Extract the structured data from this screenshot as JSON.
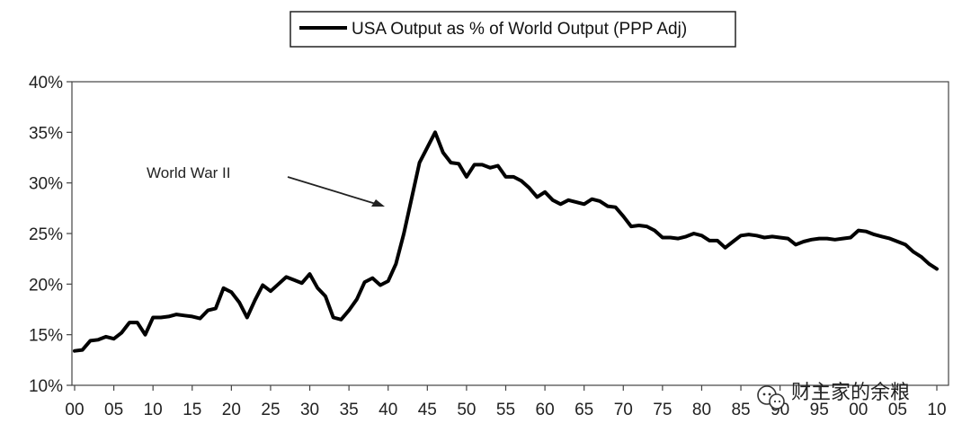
{
  "chart_data": {
    "type": "line",
    "title": "",
    "xlabel": "",
    "ylabel": "",
    "ylim": [
      10,
      40
    ],
    "xlim": [
      1900,
      2011
    ],
    "grid": false,
    "legend_placement": "top-center",
    "yticks": [
      {
        "value": 10,
        "label": "10%"
      },
      {
        "value": 15,
        "label": "15%"
      },
      {
        "value": 20,
        "label": "20%"
      },
      {
        "value": 25,
        "label": "25%"
      },
      {
        "value": 30,
        "label": "30%"
      },
      {
        "value": 35,
        "label": "35%"
      },
      {
        "value": 40,
        "label": "40%"
      }
    ],
    "xticks": [
      {
        "value": 1900,
        "label": "00"
      },
      {
        "value": 1905,
        "label": "05"
      },
      {
        "value": 1910,
        "label": "10"
      },
      {
        "value": 1915,
        "label": "15"
      },
      {
        "value": 1920,
        "label": "20"
      },
      {
        "value": 1925,
        "label": "25"
      },
      {
        "value": 1930,
        "label": "30"
      },
      {
        "value": 1935,
        "label": "35"
      },
      {
        "value": 1940,
        "label": "40"
      },
      {
        "value": 1945,
        "label": "45"
      },
      {
        "value": 1950,
        "label": "50"
      },
      {
        "value": 1955,
        "label": "55"
      },
      {
        "value": 1960,
        "label": "60"
      },
      {
        "value": 1965,
        "label": "65"
      },
      {
        "value": 1970,
        "label": "70"
      },
      {
        "value": 1975,
        "label": "75"
      },
      {
        "value": 1980,
        "label": "80"
      },
      {
        "value": 1985,
        "label": "85"
      },
      {
        "value": 1990,
        "label": "90"
      },
      {
        "value": 1995,
        "label": "95"
      },
      {
        "value": 2000,
        "label": "00"
      },
      {
        "value": 2005,
        "label": "05"
      },
      {
        "value": 2010,
        "label": "10"
      }
    ],
    "series": [
      {
        "name": "USA Output as % of World Output (PPP Adj)",
        "x": [
          1900,
          1901,
          1902,
          1903,
          1904,
          1905,
          1906,
          1907,
          1908,
          1909,
          1910,
          1911,
          1912,
          1913,
          1914,
          1915,
          1916,
          1917,
          1918,
          1919,
          1920,
          1921,
          1922,
          1923,
          1924,
          1925,
          1926,
          1927,
          1928,
          1929,
          1930,
          1931,
          1932,
          1933,
          1934,
          1935,
          1936,
          1937,
          1938,
          1939,
          1940,
          1941,
          1942,
          1943,
          1944,
          1945,
          1946,
          1947,
          1948,
          1949,
          1950,
          1951,
          1952,
          1953,
          1954,
          1955,
          1956,
          1957,
          1958,
          1959,
          1960,
          1961,
          1962,
          1963,
          1964,
          1965,
          1966,
          1967,
          1968,
          1969,
          1970,
          1971,
          1972,
          1973,
          1974,
          1975,
          1976,
          1977,
          1978,
          1979,
          1980,
          1981,
          1982,
          1983,
          1984,
          1985,
          1986,
          1987,
          1988,
          1989,
          1990,
          1991,
          1992,
          1993,
          1994,
          1995,
          1996,
          1997,
          1998,
          1999,
          2000,
          2001,
          2002,
          2003,
          2004,
          2005,
          2006,
          2007,
          2008,
          2009,
          2010
        ],
        "values": [
          13.4,
          13.5,
          14.4,
          14.5,
          14.8,
          14.6,
          15.2,
          16.2,
          16.2,
          15.0,
          16.7,
          16.7,
          16.8,
          17.0,
          16.9,
          16.8,
          16.6,
          17.4,
          17.6,
          19.6,
          19.2,
          18.2,
          16.7,
          18.4,
          19.9,
          19.3,
          20.0,
          20.7,
          20.4,
          20.1,
          21.0,
          19.6,
          18.8,
          16.7,
          16.5,
          17.4,
          18.5,
          20.2,
          20.6,
          19.9,
          20.3,
          22.0,
          25.0,
          28.5,
          32.0,
          33.5,
          35.0,
          33.0,
          32.0,
          31.9,
          30.6,
          31.8,
          31.8,
          31.5,
          31.7,
          30.6,
          30.6,
          30.2,
          29.5,
          28.6,
          29.1,
          28.3,
          27.9,
          28.3,
          28.1,
          27.9,
          28.4,
          28.2,
          27.7,
          27.6,
          26.7,
          25.7,
          25.8,
          25.7,
          25.3,
          24.6,
          24.6,
          24.5,
          24.7,
          25.0,
          24.8,
          24.3,
          24.3,
          23.6,
          24.2,
          24.8,
          24.9,
          24.8,
          24.6,
          24.7,
          24.6,
          24.5,
          23.9,
          24.2,
          24.4,
          24.5,
          24.5,
          24.4,
          24.5,
          24.6,
          25.3,
          25.2,
          24.9,
          24.7,
          24.5,
          24.2,
          23.9,
          23.2,
          22.7,
          22.0,
          21.5
        ]
      }
    ],
    "annotations": [
      {
        "text": "World War II",
        "x": 1942
      }
    ]
  },
  "legend": {
    "label": "USA Output as % of World Output (PPP Adj)"
  },
  "watermark": {
    "text": "财主家的余粮",
    "icon": "wechat-icon"
  },
  "colors": {
    "line": "#000000",
    "axis": "#333333",
    "background": "#ffffff"
  }
}
